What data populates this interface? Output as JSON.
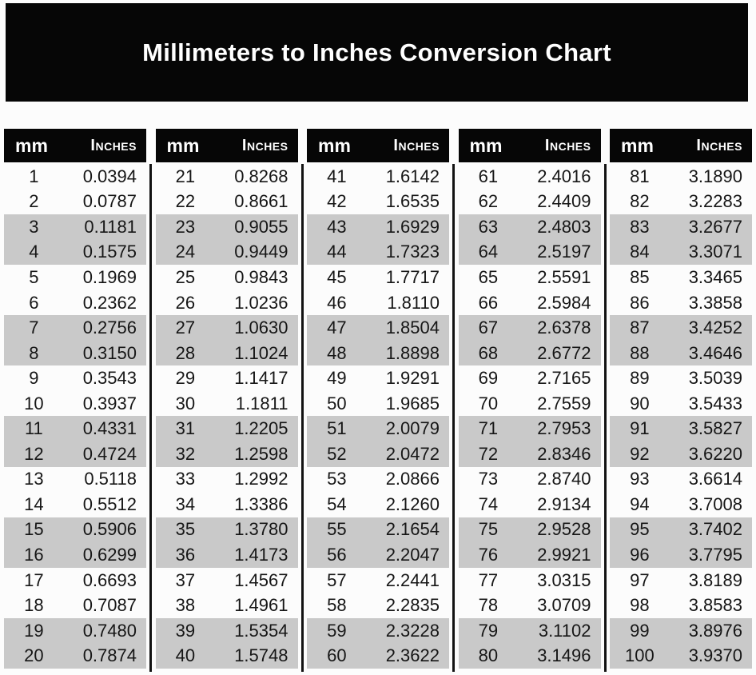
{
  "title": "Millimeters to Inches Conversion Chart",
  "header": {
    "mm_label": "mm",
    "inches_label": "Inches"
  },
  "colors": {
    "banner_bg": "#060606",
    "header_text": "#ffffff",
    "row_shaded": "#c9c9c9",
    "body_text": "#161616",
    "page_bg": "#fcfcfc",
    "divider": "#121212"
  },
  "tables": [
    {
      "rows": [
        {
          "mm": "1",
          "in": "0.0394"
        },
        {
          "mm": "2",
          "in": "0.0787"
        },
        {
          "mm": "3",
          "in": "0.1181"
        },
        {
          "mm": "4",
          "in": "0.1575"
        },
        {
          "mm": "5",
          "in": "0.1969"
        },
        {
          "mm": "6",
          "in": "0.2362"
        },
        {
          "mm": "7",
          "in": "0.2756"
        },
        {
          "mm": "8",
          "in": "0.3150"
        },
        {
          "mm": "9",
          "in": "0.3543"
        },
        {
          "mm": "10",
          "in": "0.3937"
        },
        {
          "mm": "11",
          "in": "0.4331"
        },
        {
          "mm": "12",
          "in": "0.4724"
        },
        {
          "mm": "13",
          "in": "0.5118"
        },
        {
          "mm": "14",
          "in": "0.5512"
        },
        {
          "mm": "15",
          "in": "0.5906"
        },
        {
          "mm": "16",
          "in": "0.6299"
        },
        {
          "mm": "17",
          "in": "0.6693"
        },
        {
          "mm": "18",
          "in": "0.7087"
        },
        {
          "mm": "19",
          "in": "0.7480"
        },
        {
          "mm": "20",
          "in": "0.7874"
        }
      ]
    },
    {
      "rows": [
        {
          "mm": "21",
          "in": "0.8268"
        },
        {
          "mm": "22",
          "in": "0.8661"
        },
        {
          "mm": "23",
          "in": "0.9055"
        },
        {
          "mm": "24",
          "in": "0.9449"
        },
        {
          "mm": "25",
          "in": "0.9843"
        },
        {
          "mm": "26",
          "in": "1.0236"
        },
        {
          "mm": "27",
          "in": "1.0630"
        },
        {
          "mm": "28",
          "in": "1.1024"
        },
        {
          "mm": "29",
          "in": "1.1417"
        },
        {
          "mm": "30",
          "in": "1.1811"
        },
        {
          "mm": "31",
          "in": "1.2205"
        },
        {
          "mm": "32",
          "in": "1.2598"
        },
        {
          "mm": "33",
          "in": "1.2992"
        },
        {
          "mm": "34",
          "in": "1.3386"
        },
        {
          "mm": "35",
          "in": "1.3780"
        },
        {
          "mm": "36",
          "in": "1.4173"
        },
        {
          "mm": "37",
          "in": "1.4567"
        },
        {
          "mm": "38",
          "in": "1.4961"
        },
        {
          "mm": "39",
          "in": "1.5354"
        },
        {
          "mm": "40",
          "in": "1.5748"
        }
      ]
    },
    {
      "rows": [
        {
          "mm": "41",
          "in": "1.6142"
        },
        {
          "mm": "42",
          "in": "1.6535"
        },
        {
          "mm": "43",
          "in": "1.6929"
        },
        {
          "mm": "44",
          "in": "1.7323"
        },
        {
          "mm": "45",
          "in": "1.7717"
        },
        {
          "mm": "46",
          "in": "1.8110"
        },
        {
          "mm": "47",
          "in": "1.8504"
        },
        {
          "mm": "48",
          "in": "1.8898"
        },
        {
          "mm": "49",
          "in": "1.9291"
        },
        {
          "mm": "50",
          "in": "1.9685"
        },
        {
          "mm": "51",
          "in": "2.0079"
        },
        {
          "mm": "52",
          "in": "2.0472"
        },
        {
          "mm": "53",
          "in": "2.0866"
        },
        {
          "mm": "54",
          "in": "2.1260"
        },
        {
          "mm": "55",
          "in": "2.1654"
        },
        {
          "mm": "56",
          "in": "2.2047"
        },
        {
          "mm": "57",
          "in": "2.2441"
        },
        {
          "mm": "58",
          "in": "2.2835"
        },
        {
          "mm": "59",
          "in": "2.3228"
        },
        {
          "mm": "60",
          "in": "2.3622"
        }
      ]
    },
    {
      "rows": [
        {
          "mm": "61",
          "in": "2.4016"
        },
        {
          "mm": "62",
          "in": "2.4409"
        },
        {
          "mm": "63",
          "in": "2.4803"
        },
        {
          "mm": "64",
          "in": "2.5197"
        },
        {
          "mm": "65",
          "in": "2.5591"
        },
        {
          "mm": "66",
          "in": "2.5984"
        },
        {
          "mm": "67",
          "in": "2.6378"
        },
        {
          "mm": "68",
          "in": "2.6772"
        },
        {
          "mm": "69",
          "in": "2.7165"
        },
        {
          "mm": "70",
          "in": "2.7559"
        },
        {
          "mm": "71",
          "in": "2.7953"
        },
        {
          "mm": "72",
          "in": "2.8346"
        },
        {
          "mm": "73",
          "in": "2.8740"
        },
        {
          "mm": "74",
          "in": "2.9134"
        },
        {
          "mm": "75",
          "in": "2.9528"
        },
        {
          "mm": "76",
          "in": "2.9921"
        },
        {
          "mm": "77",
          "in": "3.0315"
        },
        {
          "mm": "78",
          "in": "3.0709"
        },
        {
          "mm": "79",
          "in": "3.1102"
        },
        {
          "mm": "80",
          "in": "3.1496"
        }
      ]
    },
    {
      "rows": [
        {
          "mm": "81",
          "in": "3.1890"
        },
        {
          "mm": "82",
          "in": "3.2283"
        },
        {
          "mm": "83",
          "in": "3.2677"
        },
        {
          "mm": "84",
          "in": "3.3071"
        },
        {
          "mm": "85",
          "in": "3.3465"
        },
        {
          "mm": "86",
          "in": "3.3858"
        },
        {
          "mm": "87",
          "in": "3.4252"
        },
        {
          "mm": "88",
          "in": "3.4646"
        },
        {
          "mm": "89",
          "in": "3.5039"
        },
        {
          "mm": "90",
          "in": "3.5433"
        },
        {
          "mm": "91",
          "in": "3.5827"
        },
        {
          "mm": "92",
          "in": "3.6220"
        },
        {
          "mm": "93",
          "in": "3.6614"
        },
        {
          "mm": "94",
          "in": "3.7008"
        },
        {
          "mm": "95",
          "in": "3.7402"
        },
        {
          "mm": "96",
          "in": "3.7795"
        },
        {
          "mm": "97",
          "in": "3.8189"
        },
        {
          "mm": "98",
          "in": "3.8583"
        },
        {
          "mm": "99",
          "in": "3.8976"
        },
        {
          "mm": "100",
          "in": "3.9370"
        }
      ]
    }
  ]
}
